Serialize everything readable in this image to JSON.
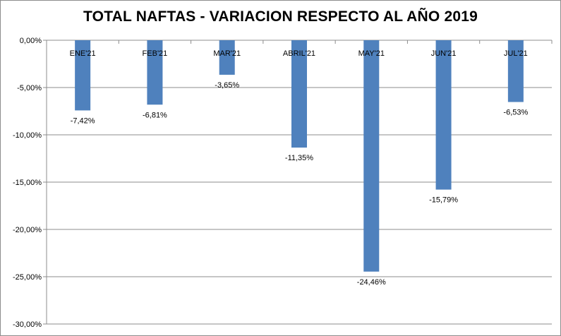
{
  "chart_data": {
    "type": "bar",
    "title": "TOTAL NAFTAS - VARIACION RESPECTO AL AÑO 2019",
    "categories": [
      "ENE'21",
      "FEB'21",
      "MAR'21",
      "ABRIL'21",
      "MAY'21",
      "JUN'21",
      "JUL'21"
    ],
    "values": [
      -7.42,
      -6.81,
      -3.65,
      -11.35,
      -24.46,
      -15.79,
      -6.53
    ],
    "data_labels": [
      "-7,42%",
      "-6,81%",
      "-3,65%",
      "-11,35%",
      "-24,46%",
      "-15,79%",
      "-6,53%"
    ],
    "yticks": [
      0,
      -5,
      -10,
      -15,
      -20,
      -25,
      -30
    ],
    "ytick_labels": [
      "0,00%",
      "-5,00%",
      "-10,00%",
      "-15,00%",
      "-20,00%",
      "-25,00%",
      "-30,00%"
    ],
    "ylim": [
      -30,
      0
    ],
    "grid": true,
    "bar_color": "#4f81bd",
    "grid_color": "#8c8c8c",
    "legend": "none"
  }
}
